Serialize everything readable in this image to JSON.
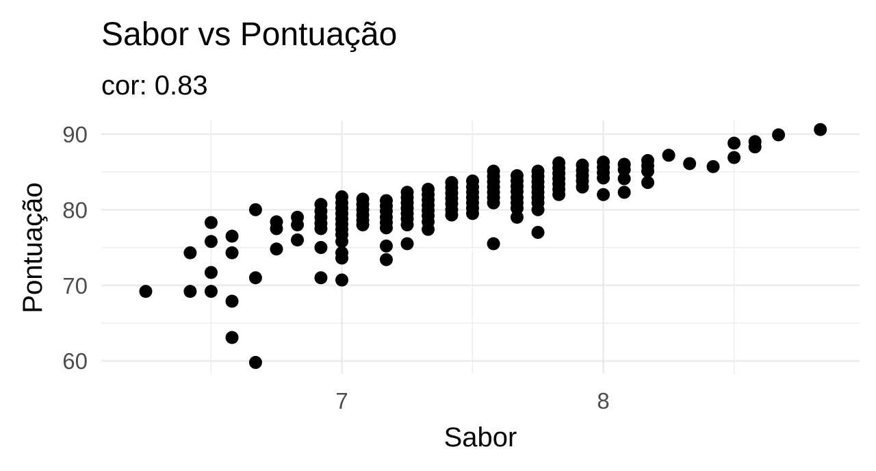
{
  "chart_data": {
    "type": "scatter",
    "title": "Sabor vs Pontuação",
    "subtitle": "cor: 0.83",
    "xlabel": "Sabor",
    "ylabel": "Pontuação",
    "xlim": [
      6.08,
      8.98
    ],
    "ylim": [
      58.3,
      91.8
    ],
    "x_ticks": [
      7,
      8
    ],
    "x_minor": [
      6.5,
      7.5,
      8.5
    ],
    "y_ticks": [
      60,
      70,
      80,
      90
    ],
    "y_minor": [
      65,
      75,
      85
    ],
    "grid": true,
    "legend": "none",
    "point_color": "#000000",
    "points": [
      [
        6.25,
        69.2
      ],
      [
        6.42,
        74.3
      ],
      [
        6.42,
        69.2
      ],
      [
        6.5,
        78.3
      ],
      [
        6.5,
        75.8
      ],
      [
        6.5,
        71.7
      ],
      [
        6.5,
        69.2
      ],
      [
        6.58,
        76.5
      ],
      [
        6.58,
        74.3
      ],
      [
        6.58,
        67.9
      ],
      [
        6.58,
        63.1
      ],
      [
        6.67,
        80.0
      ],
      [
        6.67,
        71.0
      ],
      [
        6.67,
        59.8
      ],
      [
        6.75,
        78.4
      ],
      [
        6.75,
        77.5
      ],
      [
        6.75,
        74.8
      ],
      [
        6.83,
        79.0
      ],
      [
        6.83,
        78.0
      ],
      [
        6.83,
        76.0
      ],
      [
        6.92,
        80.7
      ],
      [
        6.92,
        79.8
      ],
      [
        6.92,
        79.0
      ],
      [
        6.92,
        78.2
      ],
      [
        6.92,
        77.5
      ],
      [
        6.92,
        75.0
      ],
      [
        6.92,
        71.0
      ],
      [
        7.0,
        81.7
      ],
      [
        7.0,
        80.9
      ],
      [
        7.0,
        80.2
      ],
      [
        7.0,
        79.5
      ],
      [
        7.0,
        78.8
      ],
      [
        7.0,
        78.1
      ],
      [
        7.0,
        77.4
      ],
      [
        7.0,
        76.7
      ],
      [
        7.0,
        75.8
      ],
      [
        7.0,
        74.3
      ],
      [
        7.0,
        73.6
      ],
      [
        7.0,
        70.7
      ],
      [
        7.08,
        81.4
      ],
      [
        7.08,
        80.7
      ],
      [
        7.08,
        80.0
      ],
      [
        7.08,
        79.3
      ],
      [
        7.08,
        78.6
      ],
      [
        7.08,
        78.0
      ],
      [
        7.17,
        81.2
      ],
      [
        7.17,
        80.5
      ],
      [
        7.17,
        79.8
      ],
      [
        7.17,
        79.0
      ],
      [
        7.17,
        78.3
      ],
      [
        7.17,
        77.6
      ],
      [
        7.17,
        75.2
      ],
      [
        7.17,
        73.4
      ],
      [
        7.25,
        82.3
      ],
      [
        7.25,
        81.6
      ],
      [
        7.25,
        80.9
      ],
      [
        7.25,
        80.2
      ],
      [
        7.25,
        79.5
      ],
      [
        7.25,
        78.8
      ],
      [
        7.25,
        78.0
      ],
      [
        7.25,
        75.5
      ],
      [
        7.33,
        82.7
      ],
      [
        7.33,
        82.0
      ],
      [
        7.33,
        81.3
      ],
      [
        7.33,
        80.6
      ],
      [
        7.33,
        79.9
      ],
      [
        7.33,
        79.2
      ],
      [
        7.33,
        78.4
      ],
      [
        7.33,
        77.4
      ],
      [
        7.42,
        83.6
      ],
      [
        7.42,
        82.9
      ],
      [
        7.42,
        82.2
      ],
      [
        7.42,
        81.5
      ],
      [
        7.42,
        80.8
      ],
      [
        7.42,
        80.0
      ],
      [
        7.42,
        79.3
      ],
      [
        7.5,
        83.8
      ],
      [
        7.5,
        83.0
      ],
      [
        7.5,
        82.3
      ],
      [
        7.5,
        81.6
      ],
      [
        7.5,
        80.9
      ],
      [
        7.5,
        80.2
      ],
      [
        7.5,
        79.5
      ],
      [
        7.58,
        85.1
      ],
      [
        7.58,
        84.4
      ],
      [
        7.58,
        83.7
      ],
      [
        7.58,
        83.0
      ],
      [
        7.58,
        82.3
      ],
      [
        7.58,
        81.6
      ],
      [
        7.58,
        80.9
      ],
      [
        7.58,
        75.5
      ],
      [
        7.67,
        84.5
      ],
      [
        7.67,
        83.8
      ],
      [
        7.67,
        83.1
      ],
      [
        7.67,
        82.4
      ],
      [
        7.67,
        81.6
      ],
      [
        7.67,
        80.9
      ],
      [
        7.67,
        80.2
      ],
      [
        7.67,
        79.0
      ],
      [
        7.75,
        85.1
      ],
      [
        7.75,
        84.4
      ],
      [
        7.75,
        83.7
      ],
      [
        7.75,
        83.0
      ],
      [
        7.75,
        82.3
      ],
      [
        7.75,
        81.6
      ],
      [
        7.75,
        80.9
      ],
      [
        7.75,
        80.0
      ],
      [
        7.75,
        77.0
      ],
      [
        7.83,
        86.2
      ],
      [
        7.83,
        85.5
      ],
      [
        7.83,
        84.8
      ],
      [
        7.83,
        84.1
      ],
      [
        7.83,
        83.4
      ],
      [
        7.83,
        82.7
      ],
      [
        7.83,
        82.0
      ],
      [
        7.92,
        85.9
      ],
      [
        7.92,
        85.2
      ],
      [
        7.92,
        84.5
      ],
      [
        7.92,
        83.8
      ],
      [
        7.92,
        83.0
      ],
      [
        8.0,
        86.3
      ],
      [
        8.0,
        85.6
      ],
      [
        8.0,
        84.9
      ],
      [
        8.0,
        84.2
      ],
      [
        8.0,
        82.0
      ],
      [
        8.08,
        86.0
      ],
      [
        8.08,
        85.3
      ],
      [
        8.08,
        84.1
      ],
      [
        8.08,
        82.3
      ],
      [
        8.17,
        86.5
      ],
      [
        8.17,
        85.8
      ],
      [
        8.17,
        85.1
      ],
      [
        8.17,
        83.6
      ],
      [
        8.25,
        87.2
      ],
      [
        8.33,
        86.1
      ],
      [
        8.42,
        85.7
      ],
      [
        8.5,
        88.8
      ],
      [
        8.5,
        86.9
      ],
      [
        8.58,
        89.0
      ],
      [
        8.58,
        88.3
      ],
      [
        8.67,
        89.9
      ],
      [
        8.83,
        90.6
      ]
    ]
  }
}
